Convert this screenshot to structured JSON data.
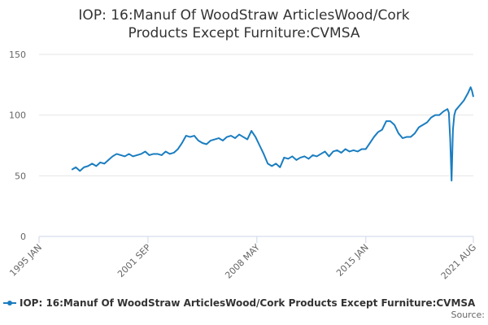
{
  "chart_data": {
    "type": "line",
    "title": "IOP: 16:Manuf Of WoodStraw ArticlesWood/Cork Products Except Furniture:CVMSA",
    "source": "Source:",
    "x": [
      "1997-01",
      "1997-04",
      "1997-07",
      "1997-10",
      "1998-01",
      "1998-04",
      "1998-07",
      "1998-10",
      "1999-01",
      "1999-04",
      "1999-07",
      "1999-10",
      "2000-01",
      "2000-04",
      "2000-07",
      "2000-10",
      "2001-01",
      "2001-04",
      "2001-07",
      "2001-10",
      "2002-01",
      "2002-04",
      "2002-07",
      "2002-10",
      "2003-01",
      "2003-04",
      "2003-07",
      "2003-10",
      "2004-01",
      "2004-04",
      "2004-07",
      "2004-10",
      "2005-01",
      "2005-04",
      "2005-07",
      "2005-10",
      "2006-01",
      "2006-04",
      "2006-07",
      "2006-10",
      "2007-01",
      "2007-04",
      "2007-07",
      "2007-10",
      "2008-01",
      "2008-04",
      "2008-07",
      "2008-10",
      "2009-01",
      "2009-04",
      "2009-07",
      "2009-10",
      "2010-01",
      "2010-04",
      "2010-07",
      "2010-10",
      "2011-01",
      "2011-04",
      "2011-07",
      "2011-10",
      "2012-01",
      "2012-04",
      "2012-07",
      "2012-10",
      "2013-01",
      "2013-04",
      "2013-07",
      "2013-10",
      "2014-01",
      "2014-04",
      "2014-07",
      "2014-10",
      "2015-01",
      "2015-04",
      "2015-07",
      "2015-10",
      "2016-01",
      "2016-04",
      "2016-07",
      "2016-10",
      "2017-01",
      "2017-04",
      "2017-07",
      "2017-10",
      "2018-01",
      "2018-04",
      "2018-07",
      "2018-10",
      "2019-01",
      "2019-04",
      "2019-07",
      "2019-10",
      "2020-01",
      "2020-02",
      "2020-03",
      "2020-04",
      "2020-05",
      "2020-06",
      "2020-07",
      "2020-10",
      "2021-01",
      "2021-04",
      "2021-06",
      "2021-07",
      "2021-08"
    ],
    "series": [
      {
        "name": "IOP: 16:Manuf Of WoodStraw ArticlesWood/Cork Products Except Furniture:CVMSA",
        "color": "#1a7dc0",
        "values": [
          55,
          57,
          54,
          57,
          58,
          60,
          58,
          61,
          60,
          63,
          66,
          68,
          67,
          66,
          68,
          66,
          67,
          68,
          70,
          67,
          68,
          68,
          67,
          70,
          68,
          69,
          72,
          77,
          83,
          82,
          83,
          79,
          77,
          76,
          79,
          80,
          81,
          79,
          82,
          83,
          81,
          84,
          82,
          80,
          87,
          82,
          75,
          68,
          60,
          58,
          60,
          57,
          65,
          64,
          66,
          63,
          65,
          66,
          64,
          67,
          66,
          68,
          70,
          66,
          70,
          71,
          69,
          72,
          70,
          71,
          70,
          72,
          72,
          77,
          82,
          86,
          88,
          95,
          95,
          92,
          85,
          81,
          82,
          82,
          85,
          90,
          92,
          94,
          98,
          100,
          100,
          103,
          105,
          102,
          80,
          46,
          88,
          100,
          104,
          108,
          112,
          118,
          123,
          120,
          115
        ]
      }
    ],
    "xlim": [
      "1995-01",
      "2021-08"
    ],
    "xticks": [
      {
        "value": "1995-01",
        "label": "1995 JAN"
      },
      {
        "value": "2001-09",
        "label": "2001 SEP"
      },
      {
        "value": "2008-05",
        "label": "2008 MAY"
      },
      {
        "value": "2015-01",
        "label": "2015 JAN"
      },
      {
        "value": "2021-08",
        "label": "2021 AUG"
      }
    ],
    "ylim": [
      0,
      150
    ],
    "yticks": [
      0,
      50,
      100,
      150
    ],
    "grid": true
  }
}
